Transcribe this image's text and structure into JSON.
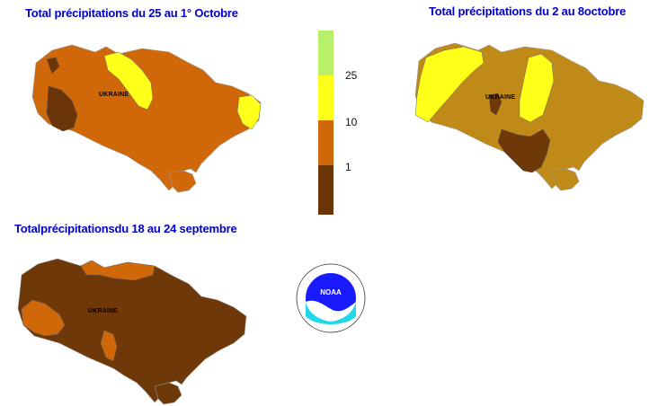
{
  "panels": [
    {
      "title": "Total précipitations du 25 au 1° Octobre",
      "map_label": "UKRAINE"
    },
    {
      "title": "Total précipitations du 2 au 8octobre",
      "map_label": "UKRAINE"
    },
    {
      "title": "Totalprécipitationsdu 18 au 24 septembre",
      "map_label": "UKRAINE"
    }
  ],
  "legend": {
    "ticks": [
      "25",
      "10",
      "1"
    ],
    "classes": [
      {
        "range": ">25",
        "color": "#b8f06a"
      },
      {
        "range": "10-25",
        "color": "#ffff1a"
      },
      {
        "range": "1-10",
        "color": "#d0680a"
      },
      {
        "range": "<1",
        "color": "#6b3508"
      }
    ]
  },
  "logo": {
    "text": "NOAA",
    "icon": "noaa-logo-icon"
  },
  "colors": {
    "title_blue": "#0000cc",
    "light_brown": "#c08a18",
    "dark_brown": "#6e3808"
  }
}
